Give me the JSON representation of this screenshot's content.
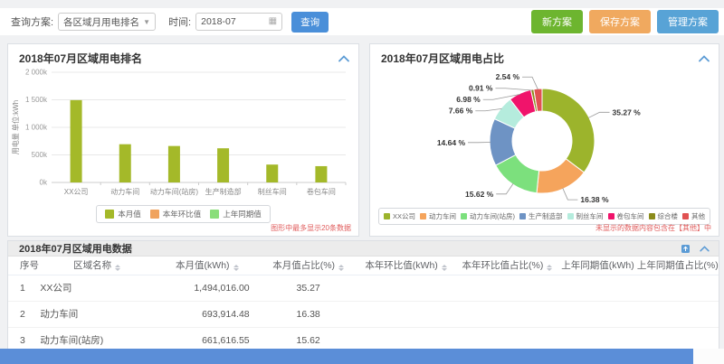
{
  "toolbar": {
    "query_plan_label": "查询方案:",
    "query_plan_value": "各区域月用电排名",
    "time_label": "时间:",
    "time_value": "2018-07",
    "search_button": "查询",
    "new_plan_button": "新方案",
    "save_plan_button": "保存方案",
    "manage_plan_button": "管理方案"
  },
  "left_panel": {
    "title": "2018年07月区域用电排名",
    "note": "图形中最多显示20条数据"
  },
  "right_panel": {
    "title": "2018年07月区域用电占比",
    "note": "未显示的数据内容包含在【其他】中"
  },
  "colors": {
    "accent_blue": "#5b9bd5",
    "bar_green": "#a4b929",
    "footer_bar": "#5b8ed8",
    "note_red": "#e05b5b"
  },
  "chart_data": [
    {
      "type": "bar",
      "title": "2018年07月区域用电排名",
      "categories": [
        "XX公司",
        "动力车间",
        "动力车间(站房)",
        "生产制造部",
        "制丝车间",
        "卷包车间"
      ],
      "values": [
        1494016,
        693914,
        661617,
        620183,
        324494,
        295688
      ],
      "ylabel": "用电量 单位:kWh",
      "ylim": [
        0,
        2000000
      ],
      "yticks": [
        "0k",
        "500k",
        "1 000k",
        "1 500k",
        "2 000k"
      ],
      "grid": true,
      "legend_position": "bottom",
      "legend": [
        {
          "label": "本月值",
          "color": "#a4b929"
        },
        {
          "label": "本年环比值",
          "color": "#f0a35e"
        },
        {
          "label": "上年同期值",
          "color": "#8ade7a"
        }
      ]
    },
    {
      "type": "pie",
      "title": "2018年07月区域用电占比",
      "legend_position": "bottom",
      "series": [
        {
          "name": "XX公司",
          "value": 35.27,
          "color": "#9cb42c"
        },
        {
          "name": "动力车间",
          "value": 16.38,
          "color": "#f5a45c"
        },
        {
          "name": "动力车间(站房)",
          "value": 15.62,
          "color": "#7ce07d"
        },
        {
          "name": "生产制造部",
          "value": 14.64,
          "color": "#6e93c4"
        },
        {
          "name": "制丝车间",
          "value": 7.66,
          "color": "#b5ecdd"
        },
        {
          "name": "卷包车间",
          "value": 6.98,
          "color": "#f0146b"
        },
        {
          "name": "综合楼",
          "value": 0.91,
          "color": "#8b8b1a"
        },
        {
          "name": "其他",
          "value": 2.54,
          "color": "#e05252"
        }
      ]
    }
  ],
  "table": {
    "title": "2018年07月区域用电数据",
    "columns": [
      {
        "label": "序号",
        "sortable": false
      },
      {
        "label": "区域名称",
        "sortable": true
      },
      {
        "label": "本月值(kWh)",
        "sortable": true
      },
      {
        "label": "本月值占比(%)",
        "sortable": true
      },
      {
        "label": "本年环比值(kWh)",
        "sortable": true
      },
      {
        "label": "本年环比值占比(%)",
        "sortable": true
      },
      {
        "label": "上年同期值(kWh)",
        "sortable": false
      },
      {
        "label": "上年同期值占比(%)",
        "sortable": false
      }
    ],
    "rows": [
      [
        "1",
        "XX公司",
        "1,494,016.00",
        "35.27",
        "",
        "",
        "",
        ""
      ],
      [
        "2",
        "动力车间",
        "693,914.48",
        "16.38",
        "",
        "",
        "",
        ""
      ],
      [
        "3",
        "动力车间(站房)",
        "661,616.55",
        "15.62",
        "",
        "",
        "",
        ""
      ]
    ]
  }
}
